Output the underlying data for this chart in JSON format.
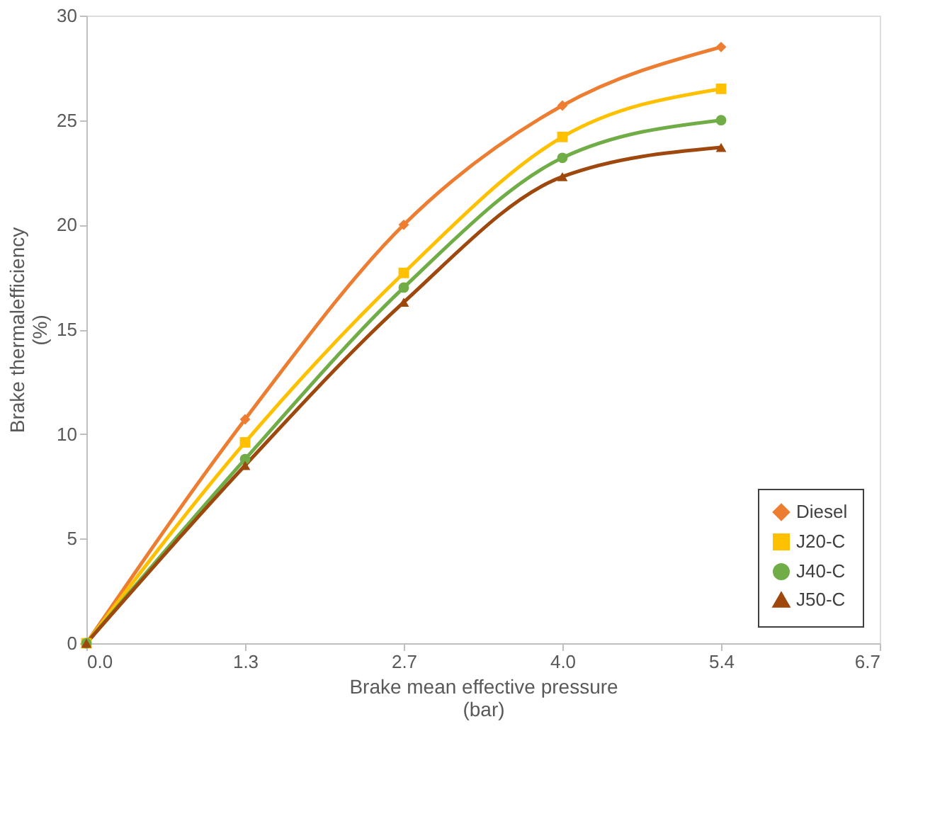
{
  "chart_data": {
    "type": "line",
    "xlabel": "Brake mean effective pressure\n(bar)",
    "ylabel": "Brake thermalefficiency\n(%)",
    "x": [
      0,
      1.34,
      2.68,
      4.02,
      5.36
    ],
    "xlim": [
      0,
      6.7
    ],
    "xticks": [
      {
        "value": 0,
        "label": "0.0"
      },
      {
        "value": 1.34,
        "label": "1.3"
      },
      {
        "value": 2.68,
        "label": "2.7"
      },
      {
        "value": 4.02,
        "label": "4.0"
      },
      {
        "value": 5.36,
        "label": "5.4"
      },
      {
        "value": 6.7,
        "label": "6.7"
      }
    ],
    "ylim": [
      0,
      30
    ],
    "yticks": [
      0,
      5,
      10,
      15,
      20,
      25,
      30
    ],
    "grid": false,
    "legend": "bottom right",
    "series": [
      {
        "name": "Diesel",
        "color": "#ed7d31",
        "marker": "diamond",
        "values": [
          0,
          10.7,
          20.0,
          25.7,
          28.5
        ]
      },
      {
        "name": "J20-C",
        "color": "#ffc000",
        "marker": "square",
        "values": [
          0,
          9.6,
          17.7,
          24.2,
          26.5
        ]
      },
      {
        "name": "J40-C",
        "color": "#70ad47",
        "marker": "circle",
        "values": [
          0,
          8.8,
          17.0,
          23.2,
          25.0
        ]
      },
      {
        "name": "J50-C",
        "color": "#9e480e",
        "marker": "triangle",
        "values": [
          0,
          8.5,
          16.3,
          22.3,
          23.7
        ]
      }
    ]
  }
}
